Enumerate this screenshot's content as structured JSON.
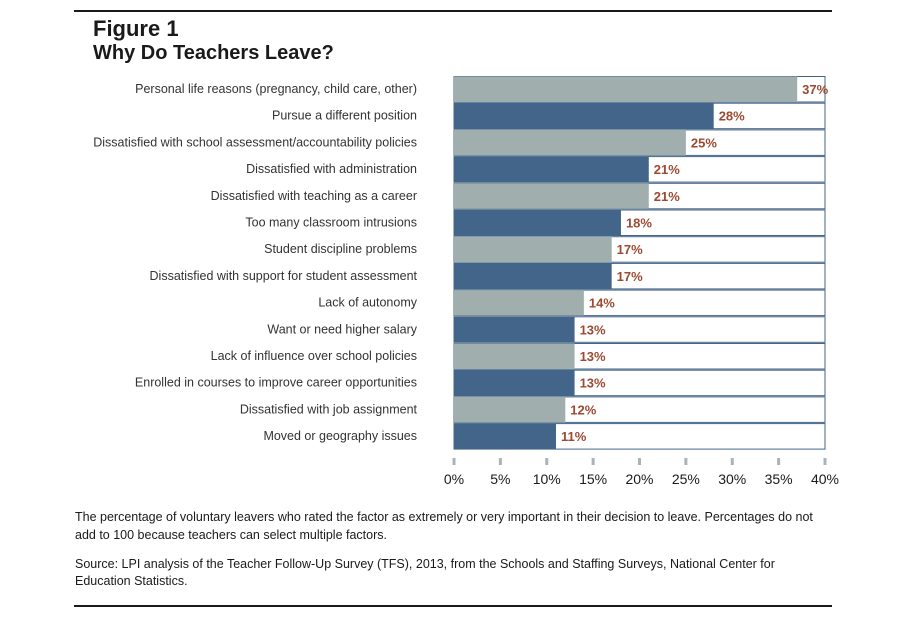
{
  "figure_label": "Figure 1",
  "chart_data": {
    "type": "bar",
    "orientation": "horizontal",
    "title": "Why Do Teachers Leave?",
    "categories": [
      "Personal life reasons (pregnancy, child care, other)",
      "Pursue a different position",
      "Dissatisfied with school assessment/accountability policies",
      "Dissatisfied with administration",
      "Dissatisfied with teaching as a career",
      "Too many classroom intrusions",
      "Student discipline problems",
      "Dissatisfied with support for student assessment",
      "Lack of autonomy",
      "Want or need higher salary",
      "Lack of influence over school policies",
      "Enrolled in courses to improve career opportunities",
      "Dissatisfied with job assignment",
      "Moved or geography issues"
    ],
    "values": [
      37,
      28,
      25,
      21,
      21,
      18,
      17,
      17,
      14,
      13,
      13,
      13,
      12,
      11
    ],
    "value_labels": [
      "37%",
      "28%",
      "25%",
      "21%",
      "21%",
      "18%",
      "17%",
      "17%",
      "14%",
      "13%",
      "13%",
      "13%",
      "12%",
      "11%"
    ],
    "xlim": [
      0,
      40
    ],
    "x_ticks": [
      0,
      5,
      10,
      15,
      20,
      25,
      30,
      35,
      40
    ],
    "x_tick_labels": [
      "0%",
      "5%",
      "10%",
      "15%",
      "20%",
      "25%",
      "30%",
      "35%",
      "40%"
    ],
    "xlabel": "",
    "ylabel": "",
    "grid": false,
    "legend": "none",
    "colors": {
      "bar_light": "#a0aeae",
      "bar_dark": "#436589",
      "value_label": "#9c4a32",
      "row_border": "#436589",
      "tick": "#a9b4b8"
    }
  },
  "note": "The percentage of voluntary leavers who rated the factor as extremely or very important in their decision to leave. Percentages do not add to 100 because teachers can select multiple factors.",
  "source": "Source: LPI analysis of the Teacher Follow-Up Survey (TFS), 2013, from the Schools and Staffing Surveys, National Center for Education Statistics."
}
